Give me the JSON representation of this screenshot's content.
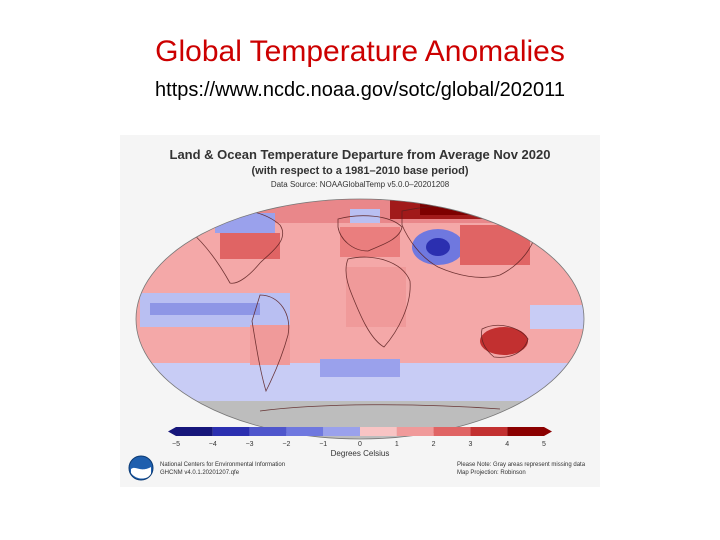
{
  "slide": {
    "title": "Global Temperature Anomalies",
    "url": "https://www.ncdc.noaa.gov/sotc/global/202011"
  },
  "map": {
    "title": "Land & Ocean Temperature Departure from Average Nov 2020",
    "subtitle": "(with respect to a 1981–2010 base period)",
    "source": "Data Source: NOAAGlobalTemp v5.0.0–20201208",
    "projection": "Robinson",
    "missing_data_color": "#bdbdbd",
    "colors": {
      "warm_strong": "#8b0000",
      "warm_mid": "#e34a4a",
      "warm_light": "#f4a8a8",
      "neutral": "#ffffff",
      "cool_light": "#b9bff2",
      "cool_mid": "#6f78df",
      "cool_strong": "#2b2fb0"
    }
  },
  "scale": {
    "ticks": [
      "−5",
      "−4",
      "−3",
      "−2",
      "−1",
      "0",
      "1",
      "2",
      "3",
      "4",
      "5"
    ],
    "unit_label": "Degrees Celsius",
    "colors": [
      "#16167a",
      "#2b2fb0",
      "#4f56cc",
      "#6f78df",
      "#9aa1ec",
      "#c8ccf5",
      "#f8c4c4",
      "#f09a9a",
      "#e06464",
      "#c23030",
      "#8b0000"
    ]
  },
  "footer": {
    "left": [
      "National Centers for Environmental Information",
      "GHCNM v4.0.1.20201207.qfe"
    ],
    "right": [
      "Please Note: Gray areas represent missing data",
      "Map Projection: Robinson"
    ],
    "logo_icon": "noaa-logo-icon"
  }
}
